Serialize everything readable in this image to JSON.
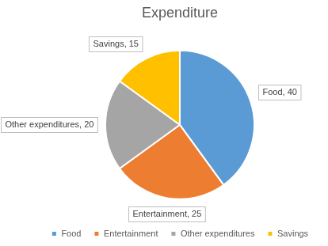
{
  "chart_data": {
    "type": "pie",
    "title": "Expenditure",
    "categories": [
      "Food",
      "Entertainment",
      "Other expenditures",
      "Savings"
    ],
    "values": [
      40,
      25,
      20,
      15
    ],
    "value_labels": [
      "Food, 40",
      "Entertainment, 25",
      "Other expenditures, 20",
      "Savings, 15"
    ],
    "colors": [
      "#5b9bd5",
      "#ed7d31",
      "#a5a5a5",
      "#ffc000"
    ],
    "data_labels": true,
    "legend": "bottom"
  }
}
